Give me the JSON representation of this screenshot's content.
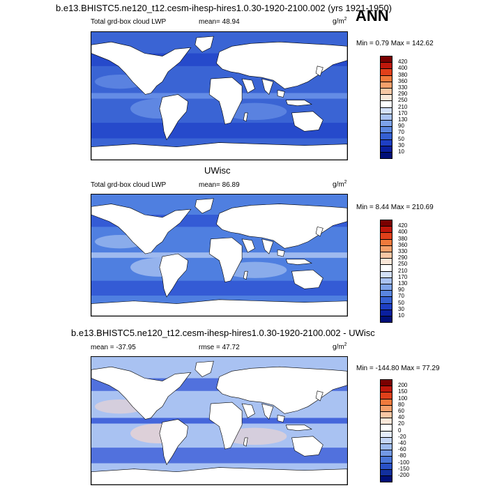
{
  "header": {
    "case_title": "b.e13.BHISTC5.ne120_t12.cesm-ihesp-hires1.0.30-1920-2100.002 (yrs 1921-1950)",
    "season": "ANN"
  },
  "panels": [
    {
      "id": "model",
      "variable_label": "Total grd-box cloud LWP",
      "mean_label": "mean=  48.94",
      "units": "g/m",
      "units_exp": "2",
      "minmax": "Min =   0.79 Max = 142.62",
      "colorbar_ticks": [
        "420",
        "400",
        "380",
        "360",
        "330",
        "290",
        "250",
        "210",
        "170",
        "130",
        "90",
        "70",
        "50",
        "30",
        "10"
      ],
      "colors": {
        "ocean_base": "#3a64d4",
        "ocean_high": "#1e3fc8",
        "ocean_low": "#6f96e8",
        "land": "#ffffff"
      }
    },
    {
      "id": "obs",
      "dataset_title": "UWisc",
      "variable_label": "Total grd-box cloud LWP",
      "mean_label": "mean=  86.89",
      "units": "g/m",
      "units_exp": "2",
      "minmax": "Min =   8.44 Max = 210.69",
      "colorbar_ticks": [
        "420",
        "400",
        "380",
        "360",
        "330",
        "290",
        "250",
        "210",
        "170",
        "130",
        "90",
        "70",
        "50",
        "30",
        "10"
      ],
      "colors": {
        "ocean_base": "#4f7fe0",
        "ocean_high": "#2a4bd0",
        "ocean_low": "#b3c9f2",
        "land": "#ffffff"
      }
    },
    {
      "id": "diff",
      "diff_title": "b.e13.BHISTC5.ne120_t12.cesm-ihesp-hires1.0.30-1920-2100.002 - UWisc",
      "mean_label": "mean = -37.95",
      "rmse_label": "rmse =   47.72",
      "units": "g/m",
      "units_exp": "2",
      "minmax": "Min = -144.80 Max =  77.29",
      "colorbar_ticks": [
        "200",
        "150",
        "100",
        "80",
        "60",
        "40",
        "20",
        "0",
        "-20",
        "-40",
        "-60",
        "-80",
        "-100",
        "-150",
        "-200"
      ],
      "colors": {
        "ocean_base": "#a9c2f2",
        "ocean_high": "#2c4fd4",
        "ocean_low": "#f4d6cf",
        "land": "#ffffff"
      }
    }
  ],
  "palettes": {
    "lwp": [
      "#7a0000",
      "#c0170b",
      "#e0401a",
      "#f07a3c",
      "#f6a06b",
      "#f8c7a4",
      "#fbe7d8",
      "#ffffff",
      "#d3e0f8",
      "#a9c2f2",
      "#7ea3ea",
      "#5a86e0",
      "#3560d2",
      "#1e3fc4",
      "#0a1f9e",
      "#000f78"
    ],
    "diff": [
      "#7a0000",
      "#c0170b",
      "#e0401a",
      "#f07a3c",
      "#f6a06b",
      "#f8c7a4",
      "#fbe7d8",
      "#ffffff",
      "#e4ecfa",
      "#c4d5f5",
      "#9dbaee",
      "#7399e4",
      "#4a76d8",
      "#2a52c8",
      "#12309e",
      "#000f78"
    ]
  }
}
